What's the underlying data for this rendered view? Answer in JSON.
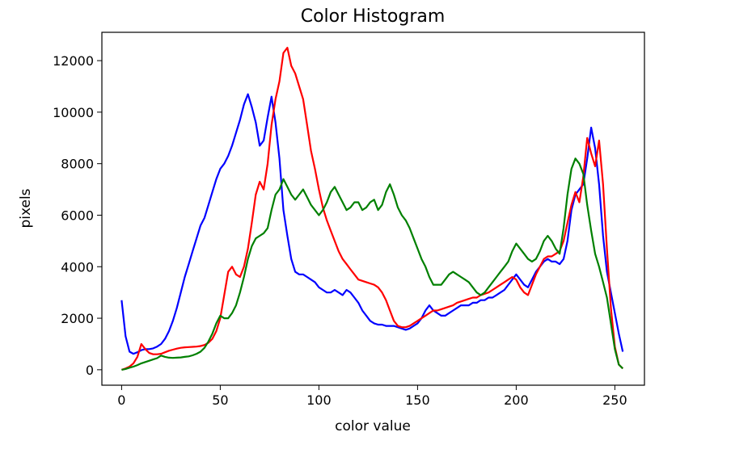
{
  "chart_data": {
    "type": "line",
    "title": "Color Histogram",
    "xlabel": "color value",
    "ylabel": "pixels",
    "xlim": [
      -10,
      265
    ],
    "ylim": [
      -600,
      13100
    ],
    "xticks": [
      0,
      50,
      100,
      150,
      200,
      250
    ],
    "yticks": [
      0,
      2000,
      4000,
      6000,
      8000,
      10000,
      12000
    ],
    "grid": false,
    "legend": "none",
    "series": [
      {
        "color": "#0000ff",
        "x": [
          0,
          2,
          4,
          6,
          8,
          10,
          12,
          14,
          16,
          18,
          20,
          22,
          24,
          26,
          28,
          30,
          32,
          34,
          36,
          38,
          40,
          42,
          44,
          46,
          48,
          50,
          52,
          54,
          56,
          58,
          60,
          62,
          64,
          66,
          68,
          70,
          72,
          74,
          76,
          78,
          80,
          82,
          84,
          86,
          88,
          90,
          92,
          94,
          96,
          98,
          100,
          102,
          104,
          106,
          108,
          110,
          112,
          114,
          116,
          118,
          120,
          122,
          124,
          126,
          128,
          130,
          132,
          134,
          136,
          138,
          140,
          142,
          144,
          146,
          148,
          150,
          152,
          154,
          156,
          158,
          160,
          162,
          164,
          166,
          168,
          170,
          172,
          174,
          176,
          178,
          180,
          182,
          184,
          186,
          188,
          190,
          192,
          194,
          196,
          198,
          200,
          202,
          204,
          206,
          208,
          210,
          212,
          214,
          216,
          218,
          220,
          222,
          224,
          226,
          228,
          230,
          232,
          234,
          236,
          238,
          240,
          242,
          244,
          246,
          248,
          250,
          252,
          254
        ],
        "y": [
          2700,
          1300,
          700,
          620,
          680,
          760,
          800,
          800,
          830,
          900,
          1000,
          1200,
          1500,
          1900,
          2400,
          3000,
          3600,
          4100,
          4600,
          5100,
          5600,
          5900,
          6400,
          6900,
          7400,
          7800,
          8000,
          8300,
          8700,
          9200,
          9700,
          10300,
          10700,
          10200,
          9600,
          8700,
          8900,
          9800,
          10600,
          9600,
          8200,
          6200,
          5200,
          4300,
          3800,
          3700,
          3700,
          3600,
          3500,
          3400,
          3200,
          3100,
          3000,
          3000,
          3100,
          3000,
          2900,
          3100,
          3000,
          2800,
          2600,
          2300,
          2100,
          1900,
          1800,
          1750,
          1750,
          1700,
          1700,
          1700,
          1650,
          1600,
          1550,
          1600,
          1700,
          1800,
          2000,
          2300,
          2500,
          2300,
          2200,
          2100,
          2100,
          2200,
          2300,
          2400,
          2500,
          2500,
          2500,
          2600,
          2600,
          2700,
          2700,
          2800,
          2800,
          2900,
          3000,
          3100,
          3300,
          3500,
          3700,
          3500,
          3300,
          3200,
          3500,
          3800,
          4000,
          4200,
          4300,
          4200,
          4200,
          4100,
          4300,
          5000,
          6200,
          6800,
          7000,
          7200,
          8200,
          9400,
          8600,
          7200,
          5200,
          3800,
          3000,
          2200,
          1400,
          700
        ]
      },
      {
        "color": "#ff0000",
        "x": [
          0,
          2,
          4,
          6,
          8,
          10,
          12,
          14,
          16,
          18,
          20,
          22,
          24,
          26,
          28,
          30,
          32,
          34,
          36,
          38,
          40,
          42,
          44,
          46,
          48,
          50,
          52,
          54,
          56,
          58,
          60,
          62,
          64,
          66,
          68,
          70,
          72,
          74,
          76,
          78,
          80,
          82,
          84,
          86,
          88,
          90,
          92,
          94,
          96,
          98,
          100,
          102,
          104,
          106,
          108,
          110,
          112,
          114,
          116,
          118,
          120,
          122,
          124,
          126,
          128,
          130,
          132,
          134,
          136,
          138,
          140,
          142,
          144,
          146,
          148,
          150,
          152,
          154,
          156,
          158,
          160,
          162,
          164,
          166,
          168,
          170,
          172,
          174,
          176,
          178,
          180,
          182,
          184,
          186,
          188,
          190,
          192,
          194,
          196,
          198,
          200,
          202,
          204,
          206,
          208,
          210,
          212,
          214,
          216,
          218,
          220,
          222,
          224,
          226,
          228,
          230,
          232,
          234,
          236,
          238,
          240,
          242,
          244,
          246,
          248,
          250,
          252,
          254
        ],
        "y": [
          0,
          50,
          120,
          250,
          500,
          1000,
          800,
          650,
          600,
          600,
          620,
          680,
          740,
          780,
          820,
          850,
          870,
          880,
          890,
          900,
          920,
          960,
          1050,
          1200,
          1500,
          2000,
          2900,
          3800,
          4000,
          3700,
          3600,
          4000,
          4700,
          5700,
          6800,
          7300,
          7000,
          8000,
          9500,
          10500,
          11200,
          12300,
          12500,
          11800,
          11500,
          11000,
          10500,
          9500,
          8500,
          7800,
          7000,
          6300,
          5800,
          5400,
          5000,
          4600,
          4300,
          4100,
          3900,
          3700,
          3500,
          3450,
          3400,
          3350,
          3300,
          3200,
          3000,
          2700,
          2300,
          1900,
          1700,
          1650,
          1650,
          1700,
          1800,
          1900,
          2000,
          2100,
          2200,
          2300,
          2300,
          2350,
          2400,
          2450,
          2500,
          2600,
          2650,
          2700,
          2750,
          2800,
          2800,
          2900,
          2950,
          3000,
          3100,
          3200,
          3300,
          3400,
          3500,
          3600,
          3500,
          3200,
          3000,
          2900,
          3300,
          3700,
          4000,
          4300,
          4400,
          4400,
          4500,
          4600,
          5000,
          5700,
          6400,
          6900,
          6500,
          7500,
          9000,
          8400,
          7900,
          8900,
          7200,
          4700,
          2400,
          900,
          200,
          50
        ]
      },
      {
        "color": "#008000",
        "x": [
          0,
          2,
          4,
          6,
          8,
          10,
          12,
          14,
          16,
          18,
          20,
          22,
          24,
          26,
          28,
          30,
          32,
          34,
          36,
          38,
          40,
          42,
          44,
          46,
          48,
          50,
          52,
          54,
          56,
          58,
          60,
          62,
          64,
          66,
          68,
          70,
          72,
          74,
          76,
          78,
          80,
          82,
          84,
          86,
          88,
          90,
          92,
          94,
          96,
          98,
          100,
          102,
          104,
          106,
          108,
          110,
          112,
          114,
          116,
          118,
          120,
          122,
          124,
          126,
          128,
          130,
          132,
          134,
          136,
          138,
          140,
          142,
          144,
          146,
          148,
          150,
          152,
          154,
          156,
          158,
          160,
          162,
          164,
          166,
          168,
          170,
          172,
          174,
          176,
          178,
          180,
          182,
          184,
          186,
          188,
          190,
          192,
          194,
          196,
          198,
          200,
          202,
          204,
          206,
          208,
          210,
          212,
          214,
          216,
          218,
          220,
          222,
          224,
          226,
          228,
          230,
          232,
          234,
          236,
          238,
          240,
          242,
          244,
          246,
          248,
          250,
          252,
          254
        ],
        "y": [
          0,
          30,
          80,
          120,
          180,
          250,
          300,
          350,
          400,
          450,
          550,
          500,
          470,
          460,
          470,
          480,
          500,
          520,
          560,
          620,
          700,
          850,
          1100,
          1400,
          1800,
          2100,
          2000,
          2000,
          2200,
          2500,
          3000,
          3600,
          4300,
          4800,
          5100,
          5200,
          5300,
          5500,
          6200,
          6800,
          7000,
          7400,
          7100,
          6800,
          6600,
          6800,
          7000,
          6700,
          6400,
          6200,
          6000,
          6200,
          6500,
          6900,
          7100,
          6800,
          6500,
          6200,
          6300,
          6500,
          6500,
          6200,
          6300,
          6500,
          6600,
          6200,
          6400,
          6900,
          7200,
          6800,
          6300,
          6000,
          5800,
          5500,
          5100,
          4700,
          4300,
          4000,
          3600,
          3300,
          3300,
          3300,
          3500,
          3700,
          3800,
          3700,
          3600,
          3500,
          3400,
          3200,
          3000,
          2900,
          3000,
          3200,
          3400,
          3600,
          3800,
          4000,
          4200,
          4600,
          4900,
          4700,
          4500,
          4300,
          4200,
          4300,
          4600,
          5000,
          5200,
          5000,
          4700,
          4500,
          5500,
          6800,
          7800,
          8200,
          8000,
          7600,
          6400,
          5400,
          4500,
          4000,
          3400,
          2800,
          1800,
          800,
          200,
          50
        ]
      }
    ]
  }
}
